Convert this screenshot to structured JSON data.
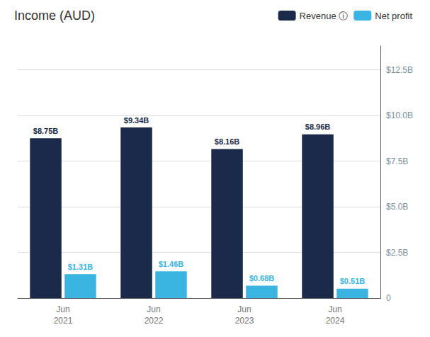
{
  "chart_data": {
    "type": "bar",
    "title": "Income (AUD)",
    "categories": [
      "Jun\n2021",
      "Jun\n2022",
      "Jun\n2023",
      "Jun\n2024"
    ],
    "series": [
      {
        "name": "Revenue ⓘ",
        "color": "#1b2a4a",
        "values": [
          8.75,
          9.34,
          8.16,
          8.96
        ],
        "value_labels": [
          "$8.75B",
          "$9.34B",
          "$8.16B",
          "$8.96B"
        ]
      },
      {
        "name": "Net profit",
        "color": "#3ab4e0",
        "values": [
          1.31,
          1.46,
          0.68,
          0.51
        ],
        "value_labels": [
          "$1.31B",
          "$1.46B",
          "$0.68B",
          "$0.51B"
        ]
      }
    ],
    "ylim": [
      0,
      13.8
    ],
    "yticks": [
      0,
      {
        "value": 2.5,
        "label": "$2.5B"
      },
      {
        "value": 5.0,
        "label": "$5.0B"
      },
      {
        "value": 7.5,
        "label": "$7.5B"
      },
      {
        "value": 10.0,
        "label": "$10.0B"
      },
      {
        "value": 12.5,
        "label": "$12.5B"
      }
    ],
    "grid": true,
    "legend": "upper right",
    "data_labels": true
  }
}
